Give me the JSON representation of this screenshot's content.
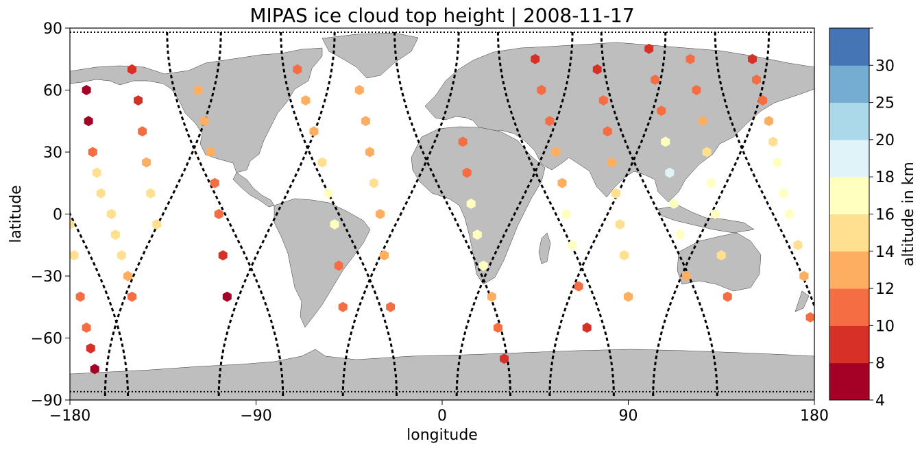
{
  "title": "MIPAS ice cloud top height | 2008-11-17",
  "xlabel": "longitude",
  "ylabel": "latitude",
  "colorbar_label": "altitude in km",
  "x_ticks": [
    "−180",
    "−90",
    "0",
    "90",
    "180"
  ],
  "y_ticks": [
    "90",
    "60",
    "30",
    "0",
    "−30",
    "−60",
    "−90"
  ],
  "colorbar_ticks": [
    "30",
    "25",
    "20",
    "18",
    "16",
    "14",
    "12",
    "10",
    "8",
    "4"
  ],
  "chart_data": {
    "type": "scatter",
    "projection": "equirectangular",
    "title": "MIPAS ice cloud top height | 2008-11-17",
    "xlabel": "longitude",
    "ylabel": "latitude",
    "xlim": [
      -180,
      180
    ],
    "ylim": [
      -90,
      90
    ],
    "x_ticks": [
      -180,
      -90,
      0,
      90,
      180
    ],
    "y_ticks": [
      -90,
      -60,
      -30,
      0,
      30,
      60,
      90
    ],
    "colorbar": {
      "label": "altitude in km",
      "bounds": [
        4,
        8,
        10,
        12,
        14,
        16,
        18,
        20,
        25,
        30
      ],
      "colors": [
        "#a50026",
        "#d73027",
        "#f46d43",
        "#fdae61",
        "#fee090",
        "#ffffbf",
        "#e0f3f8",
        "#abd9e9",
        "#74add1",
        "#4575b4"
      ]
    },
    "land_color": "#bebebe",
    "track_color": "#000000",
    "orbit_tracks_lon_at_equator": [
      -180,
      -135,
      -105,
      -80,
      -50,
      -20,
      5,
      35,
      55,
      80,
      105,
      130,
      160
    ],
    "series": [
      {
        "lon": [
          -172,
          -171,
          -169,
          -167,
          -165,
          -160,
          -158,
          -155,
          -152,
          -150
        ],
        "lat": [
          60,
          45,
          30,
          20,
          10,
          0,
          -10,
          -20,
          -30,
          -40
        ],
        "altitude_km": [
          6,
          7,
          11,
          14,
          15,
          15,
          15,
          14,
          12,
          11
        ]
      },
      {
        "lon": [
          -180,
          -178,
          -175,
          -172,
          -170,
          -168
        ],
        "lat": [
          -5,
          -20,
          -40,
          -55,
          -65,
          -75
        ],
        "altitude_km": [
          15,
          15,
          11,
          10,
          8,
          7
        ]
      },
      {
        "lon": [
          -150,
          -147,
          -145,
          -143,
          -141,
          -138
        ],
        "lat": [
          70,
          55,
          40,
          25,
          10,
          -5
        ],
        "altitude_km": [
          8,
          9,
          11,
          13,
          14,
          15
        ]
      },
      {
        "lon": [
          -118,
          -115,
          -112,
          -110,
          -108,
          -106,
          -104
        ],
        "lat": [
          60,
          45,
          30,
          15,
          0,
          -20,
          -40
        ],
        "altitude_km": [
          13,
          13,
          12,
          11,
          10,
          9,
          7
        ]
      },
      {
        "lon": [
          -70,
          -66,
          -62,
          -58,
          -55,
          -52,
          -50,
          -48
        ],
        "lat": [
          70,
          55,
          40,
          25,
          10,
          -5,
          -25,
          -45
        ],
        "altitude_km": [
          10,
          13,
          13,
          15,
          17,
          17,
          11,
          10
        ]
      },
      {
        "lon": [
          -40,
          -37,
          -35,
          -33,
          -30,
          -28,
          -25
        ],
        "lat": [
          60,
          45,
          30,
          15,
          0,
          -20,
          -45
        ],
        "altitude_km": [
          13,
          13,
          13,
          14,
          13,
          12,
          11
        ]
      },
      {
        "lon": [
          10,
          12,
          14,
          17,
          20,
          24,
          27,
          30
        ],
        "lat": [
          35,
          20,
          5,
          -10,
          -25,
          -40,
          -55,
          -70
        ],
        "altitude_km": [
          11,
          11,
          17,
          17,
          17,
          13,
          11,
          9
        ]
      },
      {
        "lon": [
          45,
          48,
          52,
          55,
          58,
          60,
          63,
          66,
          70
        ],
        "lat": [
          75,
          60,
          45,
          30,
          15,
          0,
          -15,
          -35,
          -55
        ],
        "altitude_km": [
          8,
          10,
          11,
          12,
          13,
          16,
          17,
          11,
          9
        ]
      },
      {
        "lon": [
          75,
          78,
          80,
          82,
          84,
          86,
          88,
          90
        ],
        "lat": [
          70,
          55,
          40,
          25,
          10,
          -5,
          -20,
          -40
        ],
        "altitude_km": [
          9,
          10,
          11,
          12,
          15,
          15,
          15,
          12
        ]
      },
      {
        "lon": [
          100,
          103,
          106,
          108,
          110,
          112,
          115,
          118
        ],
        "lat": [
          80,
          65,
          50,
          35,
          20,
          5,
          -10,
          -30
        ],
        "altitude_km": [
          9,
          10,
          11,
          17,
          18,
          17,
          17,
          12
        ]
      },
      {
        "lon": [
          120,
          123,
          126,
          128,
          130,
          132,
          135,
          138
        ],
        "lat": [
          75,
          60,
          45,
          30,
          15,
          0,
          -20,
          -40
        ],
        "altitude_km": [
          10,
          11,
          12,
          15,
          17,
          17,
          15,
          11
        ]
      },
      {
        "lon": [
          150,
          152,
          155,
          158,
          160,
          162,
          165,
          168,
          172,
          175,
          178
        ],
        "lat": [
          75,
          65,
          55,
          45,
          35,
          25,
          10,
          0,
          -15,
          -30,
          -50
        ],
        "altitude_km": [
          8,
          10,
          11,
          12,
          14,
          16,
          16,
          17,
          15,
          12,
          11
        ]
      }
    ]
  }
}
